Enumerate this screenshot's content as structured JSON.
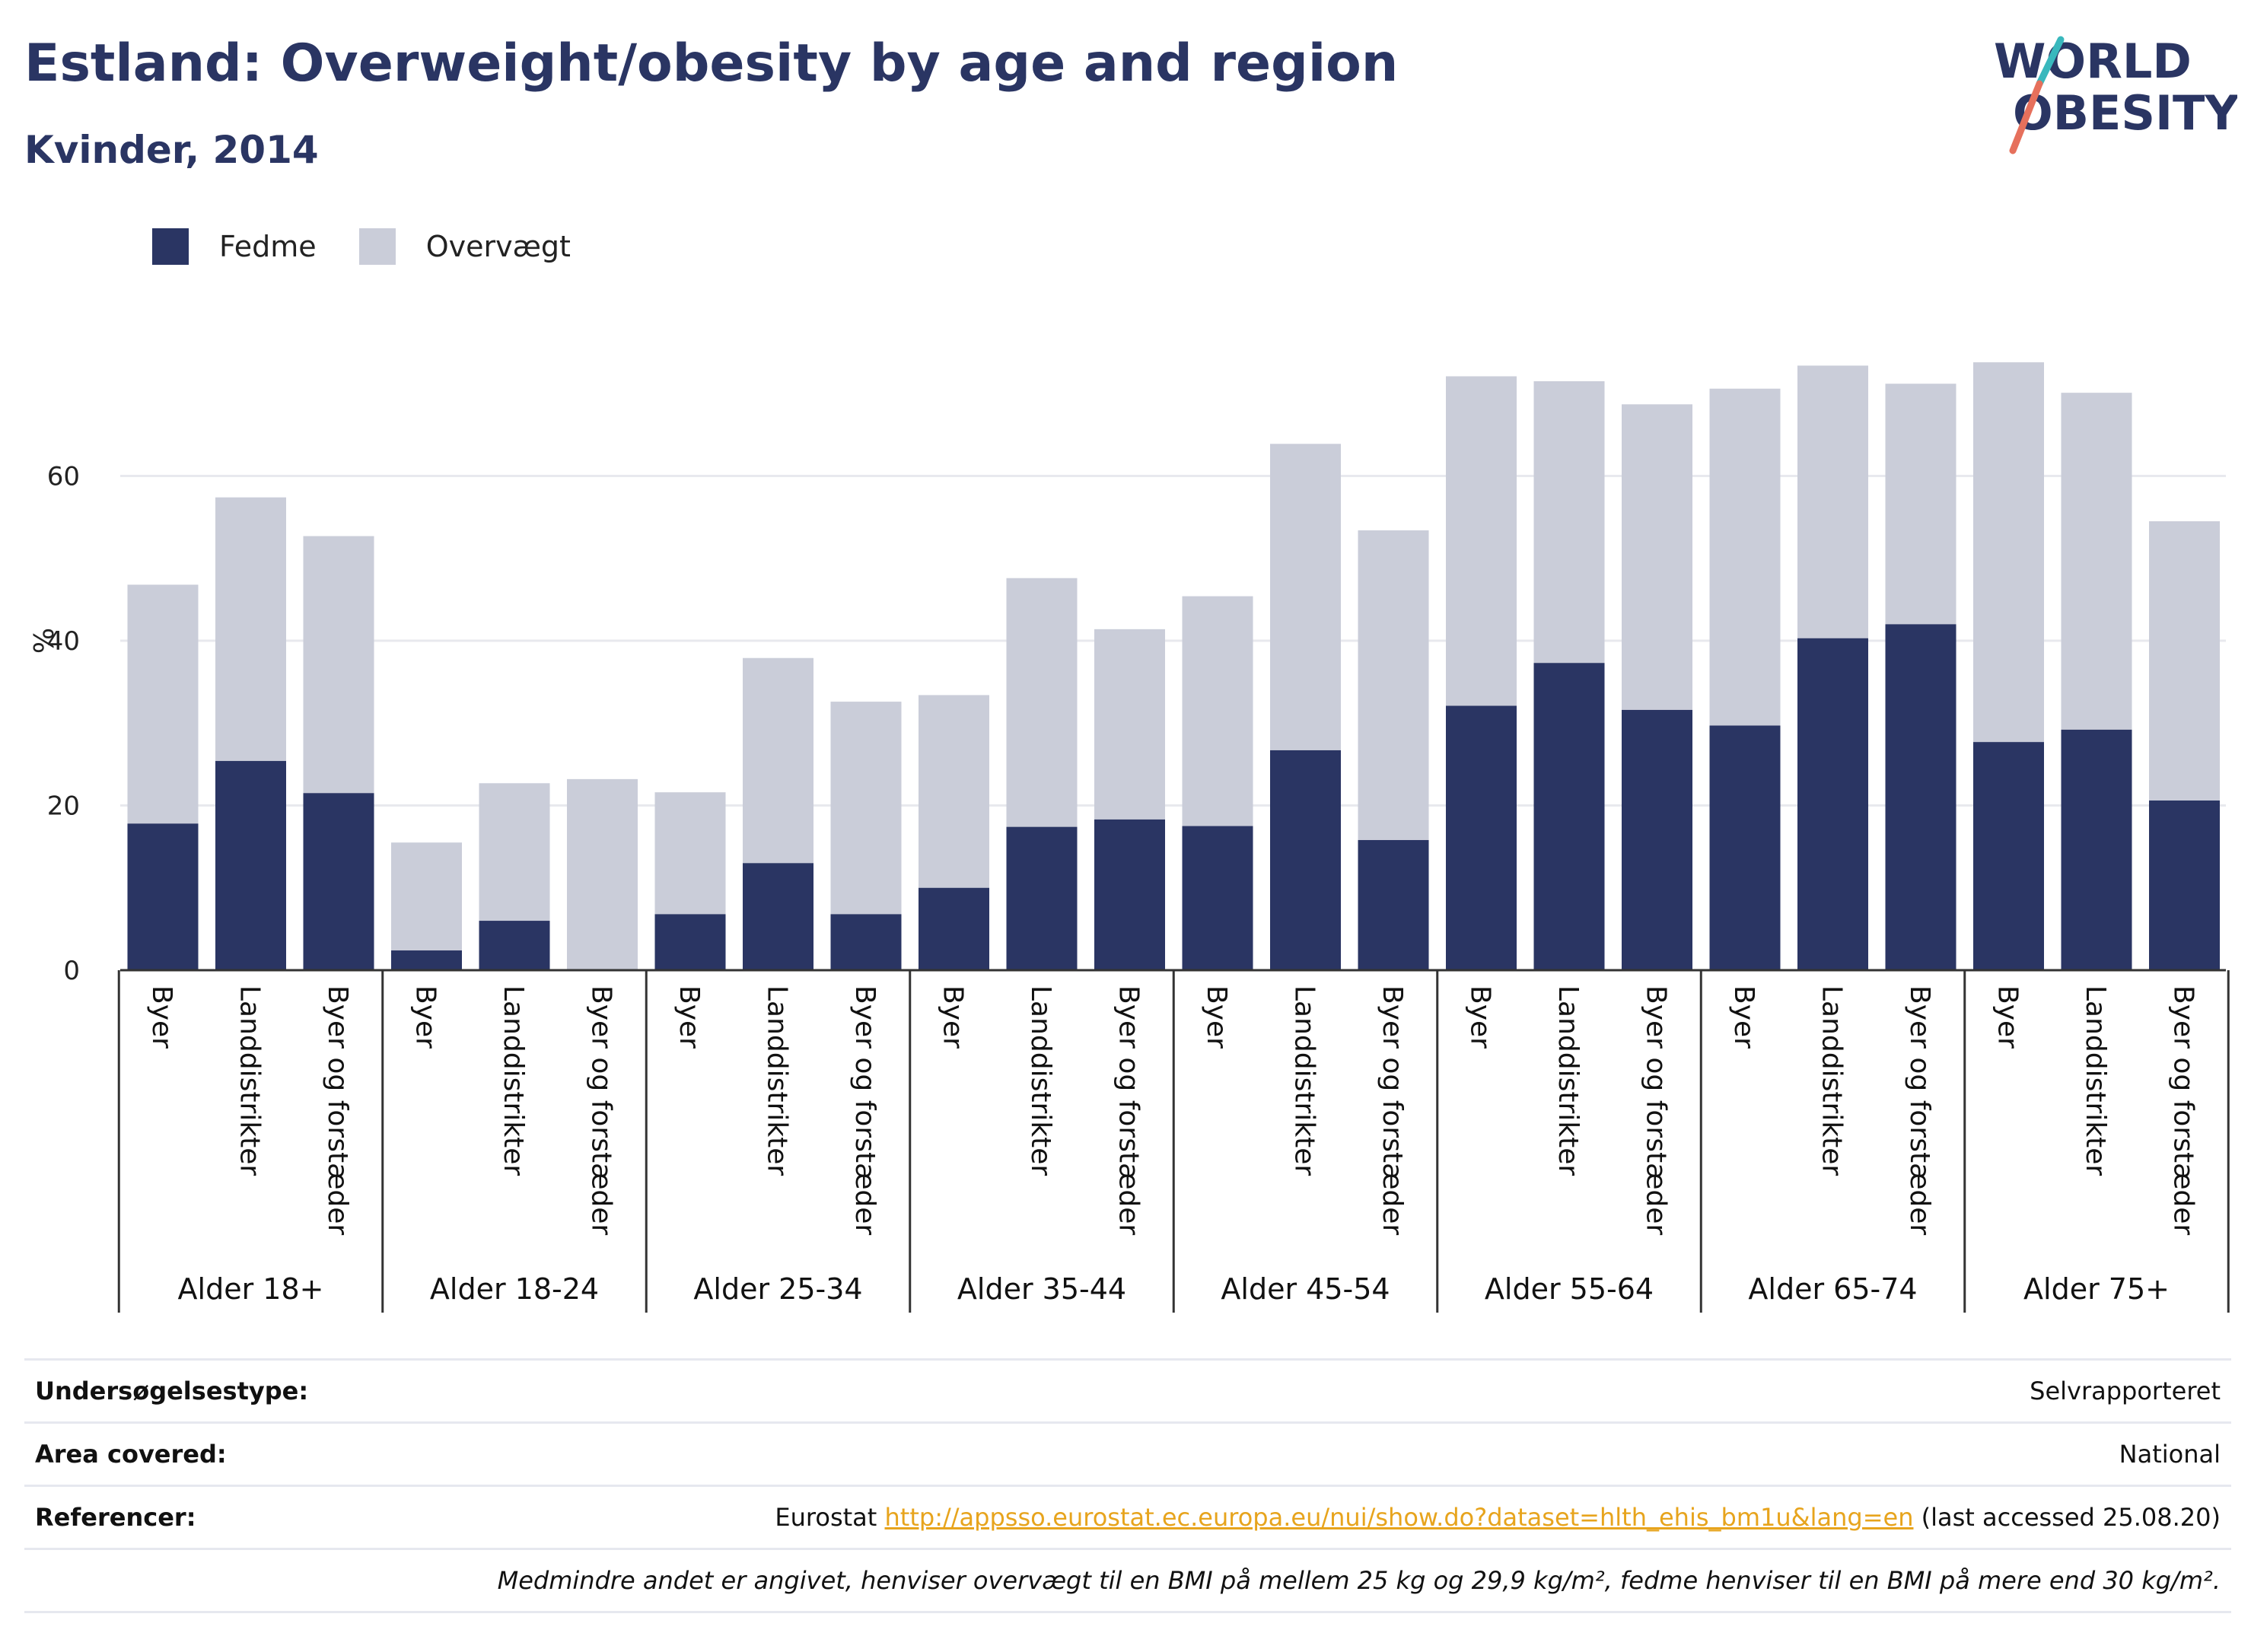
{
  "title": "Estland: Overweight/obesity by age and region",
  "subtitle": "Kvinder, 2014",
  "logo": {
    "line1": "WORLD",
    "line2": "OBESITY"
  },
  "colors": {
    "fedme": "#2a3563",
    "overvaegt": "#cacdd9",
    "accent_teal": "#39b8bd",
    "accent_coral": "#e6705c",
    "link": "#e7a41d"
  },
  "legend": [
    {
      "label": "Fedme",
      "color": "#2a3563"
    },
    {
      "label": "Overvægt",
      "color": "#cacdd9"
    }
  ],
  "chart_data": {
    "type": "bar",
    "stacked": true,
    "ylabel": "%",
    "ylim": [
      0,
      80
    ],
    "yticks": [
      0,
      20,
      40,
      60
    ],
    "grid": true,
    "legend_position": "top-left",
    "groups": [
      "Alder 18+",
      "Alder 18-24",
      "Alder 25-34",
      "Alder 35-44",
      "Alder 45-54",
      "Alder 55-64",
      "Alder 65-74",
      "Alder 75+"
    ],
    "categories_per_group": [
      "Byer",
      "Landdistrikter",
      "Byer og forstæder"
    ],
    "series": [
      {
        "name": "Fedme",
        "values": [
          17.8,
          25.4,
          21.5,
          2.4,
          6.0,
          0,
          6.8,
          13.0,
          6.8,
          10.0,
          17.4,
          18.3,
          17.5,
          26.7,
          15.8,
          32.1,
          37.3,
          31.6,
          29.7,
          40.3,
          42.0,
          27.7,
          29.2,
          20.6
        ]
      },
      {
        "name": "Overvægt",
        "values": [
          29.0,
          32.0,
          31.2,
          13.1,
          16.7,
          23.2,
          14.8,
          24.9,
          25.8,
          23.4,
          30.2,
          23.1,
          27.9,
          37.2,
          37.6,
          40.0,
          34.2,
          37.1,
          40.9,
          33.1,
          29.2,
          46.1,
          40.9,
          33.9
        ]
      }
    ]
  },
  "meta": {
    "survey_label": "Undersøgelsestype:",
    "survey_value": "Selvrapporteret",
    "area_label": "Area covered:",
    "area_value": "National",
    "ref_label": "Referencer:",
    "ref_source": "Eurostat",
    "ref_url": "http://appsso.eurostat.ec.europa.eu/nui/show.do?dataset=hlth_ehis_bm1u&lang=en",
    "ref_accessed": "(last accessed 25.08.20)",
    "note": "Medmindre andet er angivet, henviser overvægt til en BMI på mellem 25 kg og 29,9 kg/m², fedme henviser til en BMI på mere end 30 kg/m²."
  }
}
